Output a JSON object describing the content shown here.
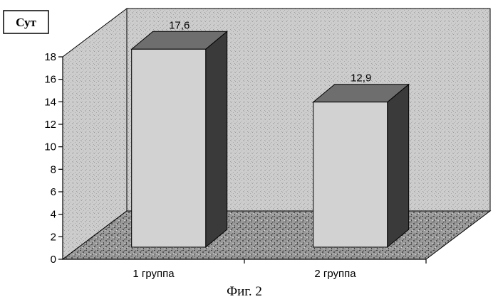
{
  "unit_label": "Сут",
  "caption": "Фиг. 2",
  "colors": {
    "bar_front": "#d2d2d2",
    "bar_top": "#6e6e6e",
    "bar_side": "#3a3a3a",
    "wall": "#c8c8c8",
    "floor": "#8a8a8a"
  },
  "chart_data": {
    "type": "bar",
    "title": "",
    "xlabel": "",
    "ylabel": "Сут",
    "categories": [
      "1 группа",
      "2 группа"
    ],
    "values": [
      17.6,
      12.9
    ],
    "value_labels": [
      "17,6",
      "12,9"
    ],
    "ylim": [
      0,
      18
    ],
    "yticks": [
      0,
      2,
      4,
      6,
      8,
      10,
      12,
      14,
      16,
      18
    ],
    "grid": false,
    "legend": "none",
    "style": "3d-column"
  }
}
